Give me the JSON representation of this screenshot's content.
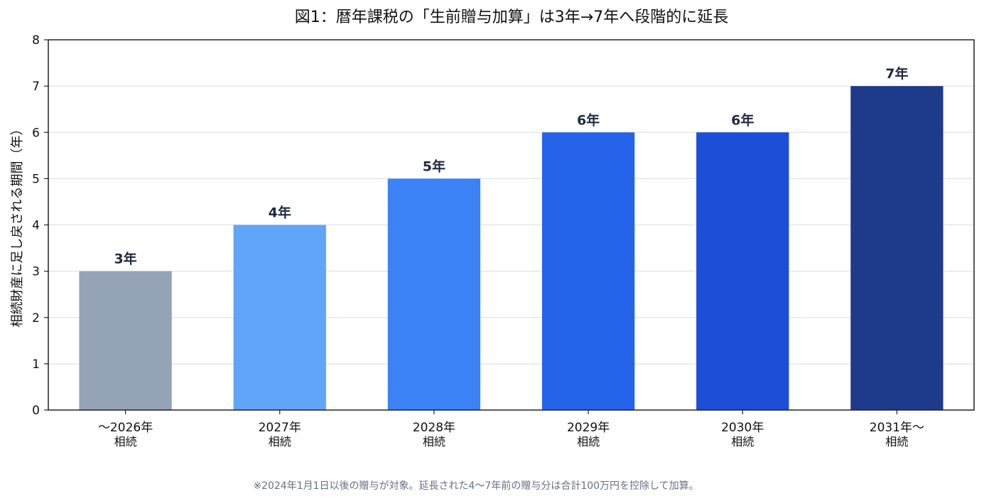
{
  "chart_data": {
    "type": "bar",
    "title": "図1：暦年課税の「生前贈与加算」は3年→7年へ段階的に延長",
    "xlabel": "",
    "ylabel": "相続財産に足し戻される期間（年）",
    "ylim": [
      0,
      8
    ],
    "yticks": [
      "0",
      "1",
      "2",
      "3",
      "4",
      "5",
      "6",
      "7",
      "8"
    ],
    "grid": true,
    "categories": [
      {
        "line1": "〜2026年",
        "line2": "相続"
      },
      {
        "line1": "2027年",
        "line2": "相続"
      },
      {
        "line1": "2028年",
        "line2": "相続"
      },
      {
        "line1": "2029年",
        "line2": "相続"
      },
      {
        "line1": "2030年",
        "line2": "相続"
      },
      {
        "line1": "2031年〜",
        "line2": "相続"
      }
    ],
    "values": [
      3,
      4,
      5,
      6,
      6,
      7
    ],
    "data_labels": [
      "3年",
      "4年",
      "5年",
      "6年",
      "6年",
      "7年"
    ],
    "colors": [
      "#94a3b8",
      "#60a5fa",
      "#3b82f6",
      "#2563eb",
      "#1d4ed8",
      "#1e3a8a"
    ],
    "label_color": "#1f2a40",
    "note": "※2024年1月1日以後の贈与が対象。延長された4〜7年前の贈与分は合計100万円を控除して加算。"
  }
}
